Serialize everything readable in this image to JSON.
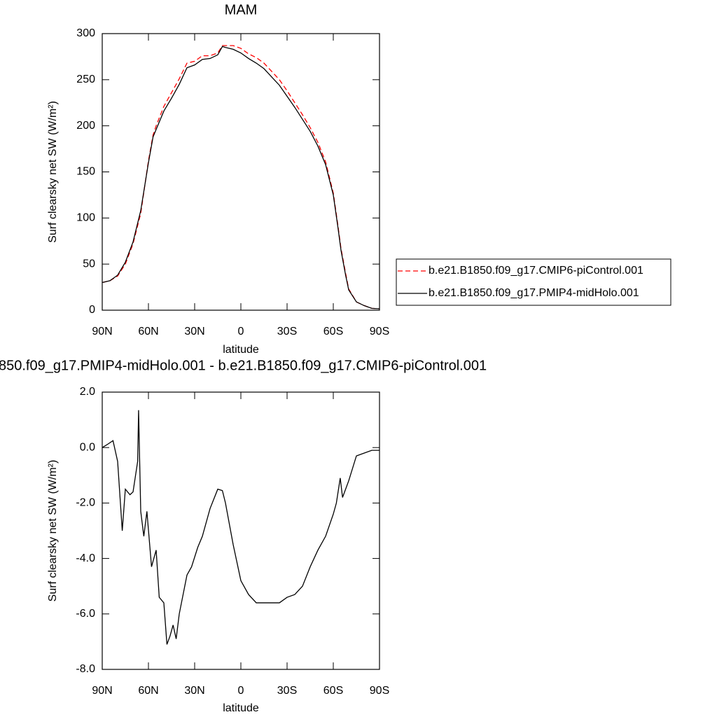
{
  "chart_data": [
    {
      "type": "line",
      "title": "MAM",
      "xlabel": "latitude",
      "ylabel": "Surf clearsky net SW (W/m²)",
      "x": [
        90,
        85,
        80,
        75,
        70,
        65,
        60,
        57,
        55,
        50,
        45,
        40,
        35,
        30,
        25,
        20,
        15,
        12,
        10,
        5,
        0,
        -5,
        -10,
        -15,
        -20,
        -25,
        -30,
        -35,
        -40,
        -45,
        -50,
        -55,
        -60,
        -63,
        -65,
        -68,
        -70,
        -75,
        -80,
        -85,
        -90
      ],
      "series": [
        {
          "name": "b.e21.B1850.f09_g17.CMIP6-piControl.001",
          "color": "#ff0000",
          "dash": true,
          "values": [
            30,
            32,
            37,
            50,
            72,
            105,
            162,
            190,
            200,
            221,
            236,
            251,
            268,
            270,
            276,
            276,
            279,
            287,
            287,
            287,
            284,
            278,
            274,
            268,
            259,
            250,
            238,
            225,
            212,
            198,
            182,
            161,
            127,
            92,
            67,
            40,
            23,
            9,
            5,
            2,
            1.5
          ]
        },
        {
          "name": "b.e21.B1850.f09_g17.PMIP4-midHolo.001",
          "color": "#000000",
          "dash": false,
          "values": [
            30,
            32,
            38,
            52,
            74,
            108,
            160,
            188,
            196,
            216,
            230,
            245,
            263,
            266,
            272,
            273,
            277,
            286,
            285,
            283,
            279,
            273,
            268,
            262,
            253,
            244,
            232,
            220,
            207,
            194,
            178,
            158,
            125,
            90,
            65,
            38,
            22,
            9,
            5,
            2,
            1.5
          ]
        }
      ],
      "xlim": [
        90,
        -90
      ],
      "xticks": [
        {
          "value": 90,
          "label": "90N"
        },
        {
          "value": 60,
          "label": "60N"
        },
        {
          "value": 30,
          "label": "30N"
        },
        0,
        {
          "value": -30,
          "label": "30S"
        },
        {
          "value": -60,
          "label": "60S"
        },
        {
          "value": -90,
          "label": "90S"
        }
      ],
      "ylim": [
        0,
        300
      ],
      "yticks": [
        0,
        50,
        100,
        150,
        200,
        250,
        300
      ],
      "legend": "outside right"
    },
    {
      "type": "line",
      "title": "850.f09_g17.PMIP4-midHolo.001 - b.e21.B1850.f09_g17.CMIP6-piControl.001",
      "xlabel": "latitude",
      "ylabel": "Surf clearsky net SW (W/m²)",
      "x": [
        90,
        87,
        83,
        80,
        77,
        75,
        72,
        70,
        67,
        66.4,
        65,
        63,
        61,
        58,
        55,
        53,
        50,
        48,
        46,
        44,
        42,
        40,
        35,
        32,
        28,
        25,
        20,
        15,
        12,
        10,
        5,
        0,
        -5,
        -10,
        -15,
        -20,
        -25,
        -30,
        -35,
        -40,
        -45,
        -50,
        -55,
        -60,
        -62,
        -64.5,
        -66,
        -70,
        -75,
        -80,
        -85,
        -90
      ],
      "series": [
        {
          "color": "#000000",
          "dash": false,
          "values": [
            0,
            0.1,
            0.25,
            -0.5,
            -3.0,
            -1.5,
            -1.7,
            -1.6,
            -0.5,
            1.35,
            -2.3,
            -3.2,
            -2.3,
            -4.3,
            -3.7,
            -5.4,
            -5.6,
            -7.1,
            -6.8,
            -6.4,
            -6.9,
            -6.0,
            -4.6,
            -4.3,
            -3.6,
            -3.2,
            -2.2,
            -1.5,
            -1.55,
            -2.0,
            -3.5,
            -4.8,
            -5.3,
            -5.6,
            -5.6,
            -5.6,
            -5.6,
            -5.4,
            -5.3,
            -5.0,
            -4.3,
            -3.7,
            -3.2,
            -2.4,
            -2.0,
            -1.1,
            -1.8,
            -1.2,
            -0.3,
            -0.2,
            -0.1,
            -0.1
          ]
        }
      ],
      "xlim": [
        90,
        -90
      ],
      "xticks": [
        {
          "value": 90,
          "label": "90N"
        },
        {
          "value": 60,
          "label": "60N"
        },
        {
          "value": 30,
          "label": "30N"
        },
        0,
        {
          "value": -30,
          "label": "30S"
        },
        {
          "value": -60,
          "label": "60S"
        },
        {
          "value": -90,
          "label": "90S"
        }
      ],
      "ylim": [
        -8,
        2
      ],
      "yticks": [
        {
          "value": 2,
          "label": "2.0"
        },
        {
          "value": 0,
          "label": "0.0"
        },
        {
          "value": -2,
          "label": "-2.0"
        },
        {
          "value": -4,
          "label": "-4.0"
        },
        {
          "value": -6,
          "label": "-6.0"
        },
        {
          "value": -8,
          "label": "-8.0"
        }
      ]
    }
  ]
}
